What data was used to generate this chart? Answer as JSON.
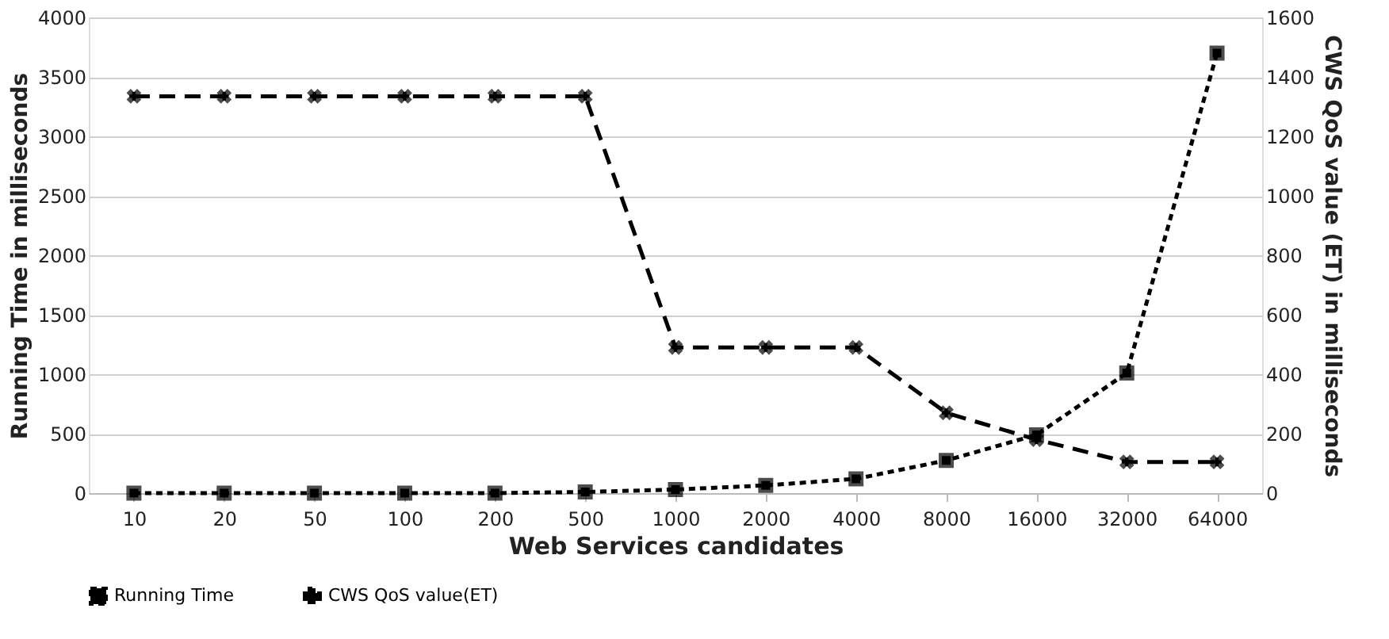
{
  "chart_data": {
    "type": "line",
    "xlabel": "Web Services candidates",
    "ylabel": "Running Time in milliseconds",
    "y2label": "CWS QoS value (ET)  in milliseconds",
    "categories": [
      "10",
      "20",
      "50",
      "100",
      "200",
      "500",
      "1000",
      "2000",
      "4000",
      "8000",
      "16000",
      "32000",
      "64000"
    ],
    "series": [
      {
        "name": "Running Time",
        "color": "#000000",
        "marker": "square",
        "line_style": "dotted",
        "values": [
          0,
          0,
          0,
          0,
          0,
          10,
          30,
          65,
          120,
          275,
          490,
          1010,
          3700
        ]
      },
      {
        "name": "CWS QoS value(ET)",
        "color": "#000000",
        "marker": "cross",
        "line_style": "dashed",
        "axis": "y2",
        "values": [
          1335,
          1335,
          1335,
          1335,
          1335,
          1335,
          490,
          490,
          490,
          270,
          180,
          105,
          105
        ]
      }
    ],
    "ylim": [
      0,
      4000
    ],
    "yticks": [
      0,
      500,
      1000,
      1500,
      2000,
      2500,
      3000,
      3500,
      4000
    ],
    "y2lim": [
      0,
      1600
    ],
    "y2ticks": [
      0,
      200,
      400,
      600,
      800,
      1000,
      1200,
      1400,
      1600
    ],
    "grid": "y",
    "legend": "bottom"
  }
}
